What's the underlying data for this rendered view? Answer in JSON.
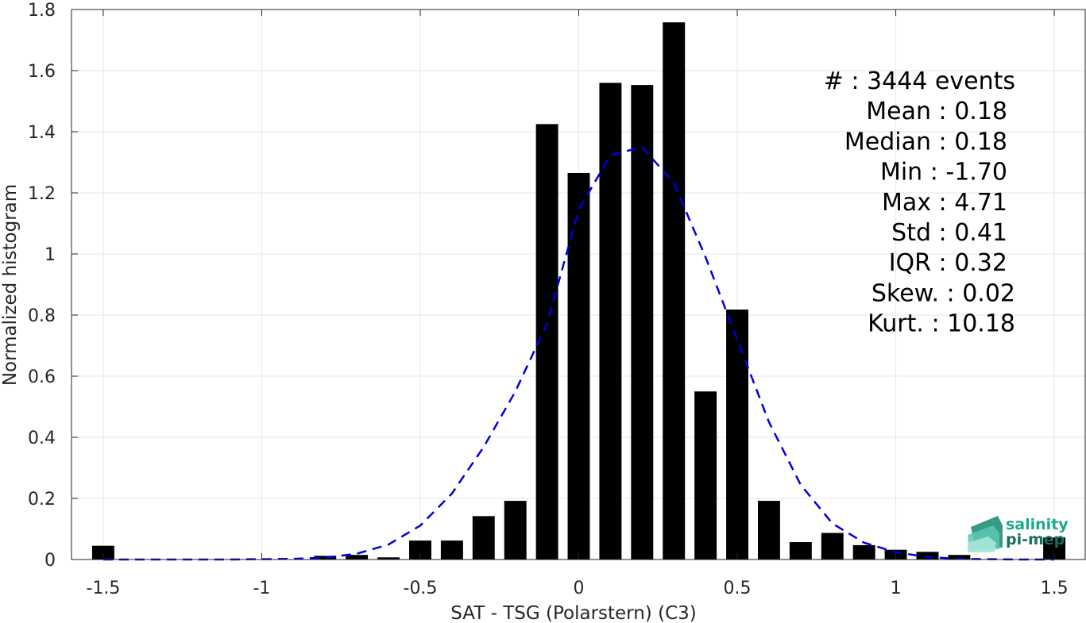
{
  "chart_data": {
    "type": "bar",
    "title": "",
    "xlabel": "SAT - TSG (Polarstern) (C3)",
    "ylabel": "Normalized histogram",
    "xlim": [
      -1.6,
      1.6
    ],
    "ylim": [
      0,
      1.8
    ],
    "grid": true,
    "x_ticks": [
      -1.5,
      -1,
      -0.5,
      0,
      0.5,
      1,
      1.5
    ],
    "x_tick_labels": [
      "-1.5",
      "-1",
      "-0.5",
      "0",
      "0.5",
      "1",
      "1.5"
    ],
    "y_ticks": [
      0,
      0.2,
      0.4,
      0.6,
      0.8,
      1,
      1.2,
      1.4,
      1.6,
      1.8
    ],
    "y_tick_labels": [
      "0",
      "0.2",
      "0.4",
      "0.6",
      "0.8",
      "1",
      "1.2",
      "1.4",
      "1.6",
      "1.8"
    ],
    "bar_width": 0.07,
    "bar_color": "#000000",
    "bars": {
      "x": [
        -1.5,
        -0.8,
        -0.7,
        -0.6,
        -0.5,
        -0.4,
        -0.3,
        -0.2,
        -0.1,
        0,
        0.1,
        0.2,
        0.3,
        0.4,
        0.5,
        0.6,
        0.7,
        0.8,
        0.9,
        1.0,
        1.1,
        1.2,
        1.5
      ],
      "values": [
        0.045,
        0.012,
        0.015,
        0.007,
        0.062,
        0.062,
        0.142,
        0.192,
        1.425,
        1.265,
        1.56,
        1.553,
        1.758,
        0.55,
        0.818,
        0.192,
        0.057,
        0.087,
        0.047,
        0.032,
        0.025,
        0.015,
        0.072
      ]
    },
    "fit_curve": {
      "style": "dashed",
      "color": "#0000dd",
      "x": [
        -1.5,
        -1.4,
        -1.3,
        -1.2,
        -1.1,
        -1.0,
        -0.9,
        -0.8,
        -0.7,
        -0.6,
        -0.5,
        -0.4,
        -0.3,
        -0.2,
        -0.1,
        0.0,
        0.1,
        0.2,
        0.3,
        0.4,
        0.5,
        0.6,
        0.7,
        0.8,
        0.9,
        1.0,
        1.1,
        1.2,
        1.3,
        1.4,
        1.5
      ],
      "y": [
        0.0,
        0.0,
        0.0,
        0.0,
        0.0,
        0.001,
        0.002,
        0.006,
        0.019,
        0.049,
        0.111,
        0.216,
        0.368,
        0.55,
        0.772,
        1.145,
        1.323,
        1.35,
        1.232,
        0.99,
        0.72,
        0.45,
        0.245,
        0.118,
        0.055,
        0.024,
        0.008,
        0.002,
        0.001,
        0.0,
        0.0
      ]
    },
    "annotation": {
      "placement": "top-right",
      "lines": [
        "#  : 3444 events",
        "Mean : 0.18",
        "Median : 0.18",
        "Min : -1.70",
        "Max : 4.71",
        "Std : 0.41",
        "IQR : 0.32",
        "Skew. : 0.02",
        "Kurt. : 10.18"
      ]
    }
  },
  "logo": {
    "line1": "salinity",
    "line2": "pi-mep",
    "color": "#1ba88e",
    "placement": "bottom-right"
  }
}
